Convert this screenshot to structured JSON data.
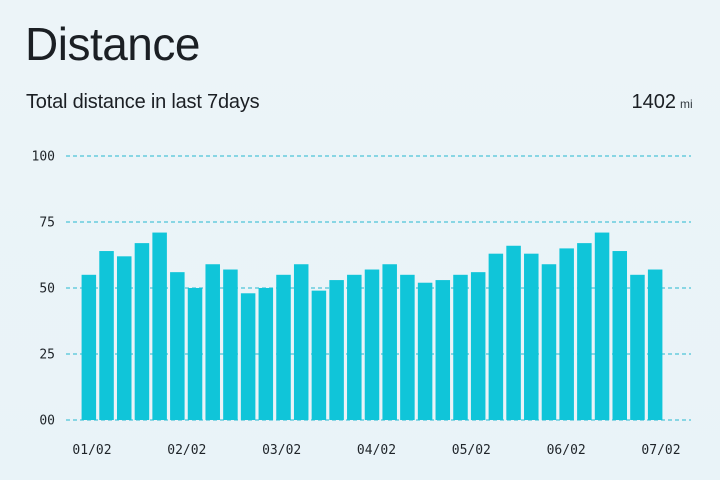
{
  "header": {
    "title": "Distance",
    "subtitle": "Total distance in last 7days",
    "total_value": "1402",
    "total_unit": "mi"
  },
  "colors": {
    "bar": "#10c5d9",
    "grid": "#26b8cf",
    "background": "#ecf4f8"
  },
  "chart_data": {
    "type": "bar",
    "title": "Distance",
    "ylim": [
      0,
      100
    ],
    "yticks": [
      "00",
      "25",
      "50",
      "75",
      "100"
    ],
    "xtick_labels": [
      "01/02",
      "02/02",
      "03/02",
      "04/02",
      "05/02",
      "06/02",
      "07/02"
    ],
    "grid": true,
    "values": [
      55,
      64,
      62,
      67,
      71,
      56,
      50,
      59,
      57,
      48,
      50,
      55,
      59,
      49,
      53,
      55,
      57,
      59,
      55,
      52,
      53,
      55,
      56,
      63,
      66,
      63,
      59,
      65,
      67,
      71,
      64,
      55,
      57
    ]
  }
}
